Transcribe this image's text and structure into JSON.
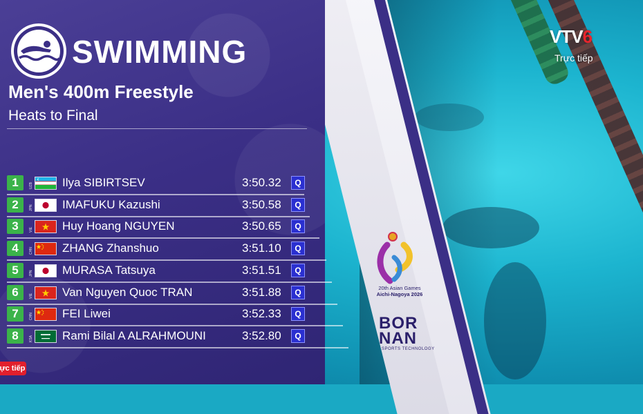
{
  "header": {
    "sport": "SWIMMING",
    "event": "Men's 400m Freestyle",
    "subtitle": "Heats to Final"
  },
  "results": [
    {
      "rank": "1",
      "noc": "UZB",
      "flag": "uzb",
      "name": "Ilya SIBIRTSEV",
      "time": "3:50.32",
      "q": "Q"
    },
    {
      "rank": "2",
      "noc": "JPN",
      "flag": "jpn",
      "name": "IMAFUKU Kazushi",
      "time": "3:50.58",
      "q": "Q"
    },
    {
      "rank": "3",
      "noc": "VIE",
      "flag": "vie",
      "name": "Huy Hoang NGUYEN",
      "time": "3:50.65",
      "q": "Q"
    },
    {
      "rank": "4",
      "noc": "CHN",
      "flag": "chn",
      "name": "ZHANG Zhanshuo",
      "time": "3:51.10",
      "q": "Q"
    },
    {
      "rank": "5",
      "noc": "JPN",
      "flag": "jpn",
      "name": "MURASA Tatsuya",
      "time": "3:51.51",
      "q": "Q"
    },
    {
      "rank": "6",
      "noc": "VIE",
      "flag": "vie",
      "name": "Van Nguyen Quoc TRAN",
      "time": "3:51.88",
      "q": "Q"
    },
    {
      "rank": "7",
      "noc": "CHN",
      "flag": "chn",
      "name": "FEI Liwei",
      "time": "3:52.33",
      "q": "Q"
    },
    {
      "rank": "8",
      "noc": "KSA",
      "flag": "ksa",
      "name": "Rami Bilal A ALRAHMOUNI",
      "time": "3:52.80",
      "q": "Q"
    }
  ],
  "games_logo": {
    "line1": "20th Asian Games",
    "line2": "Aichi-Nagoya 2026"
  },
  "sponsor": {
    "name_line1": "BOR",
    "name_line2": "NAN",
    "tagline": "SPORTS TECHNOLOGY"
  },
  "broadcaster": {
    "logo_text": "VTV",
    "logo_number": "6",
    "live_text": "Trực tiếp",
    "live_tag_text": "ực tiếp"
  },
  "colors": {
    "panel": "#3b2f86",
    "rank_badge": "#3bb34a",
    "qualifier_badge": "#2a2fd0",
    "broadcaster_red": "#e21f2c"
  }
}
